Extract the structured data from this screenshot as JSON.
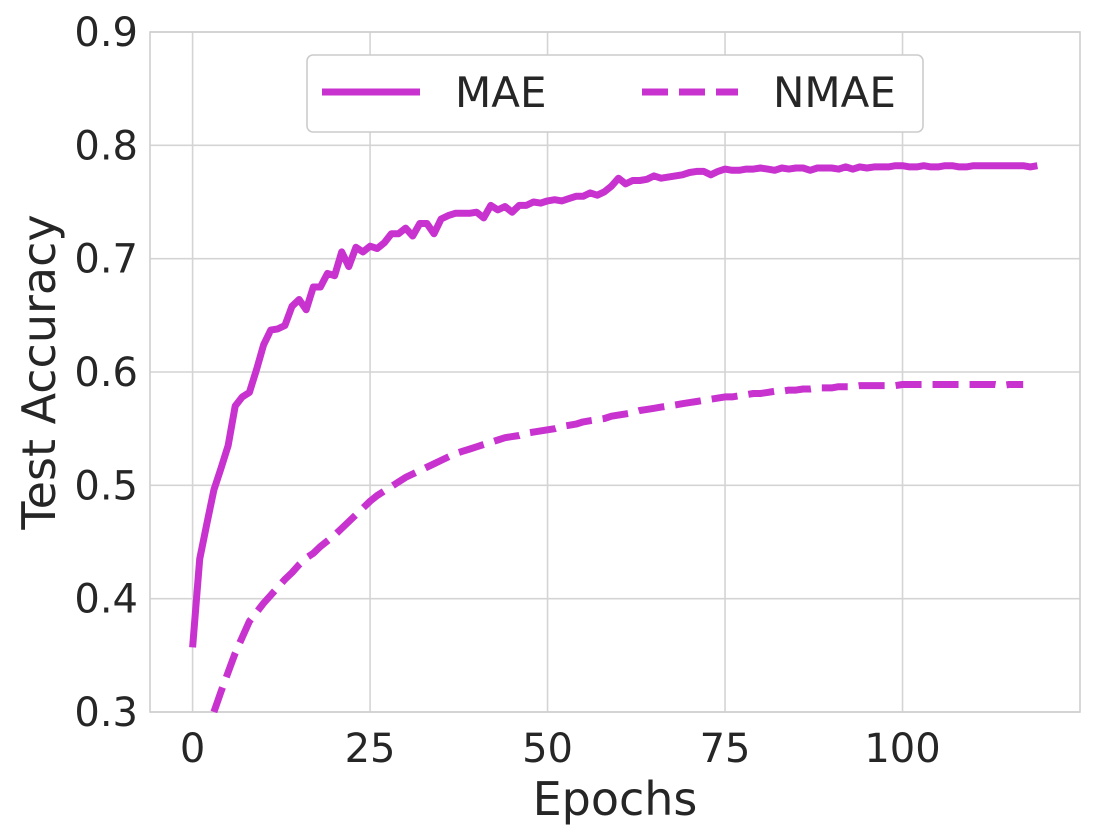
{
  "chart_data": {
    "type": "line",
    "title": "",
    "xlabel": "Epochs",
    "ylabel": "Test Accuracy",
    "xlim": [
      -6,
      125
    ],
    "ylim": [
      0.3,
      0.9
    ],
    "x_ticks": [
      0,
      25,
      50,
      75,
      100
    ],
    "x_tick_labels": [
      "0",
      "25",
      "50",
      "75",
      "100"
    ],
    "y_ticks": [
      0.3,
      0.4,
      0.5,
      0.6,
      0.7,
      0.8,
      0.9
    ],
    "y_tick_labels": [
      "0.3",
      "0.4",
      "0.5",
      "0.6",
      "0.7",
      "0.8",
      "0.9"
    ],
    "grid": true,
    "legend": {
      "placement": "top-center",
      "columns": 2
    },
    "series": [
      {
        "name": "MAE",
        "color": "#c832cf",
        "dash": "solid",
        "x": [
          0,
          1,
          2,
          3,
          4,
          5,
          6,
          7,
          8,
          9,
          10,
          11,
          12,
          13,
          14,
          15,
          16,
          17,
          18,
          19,
          20,
          21,
          22,
          23,
          24,
          25,
          26,
          27,
          28,
          29,
          30,
          31,
          32,
          33,
          34,
          35,
          36,
          37,
          38,
          39,
          40,
          41,
          42,
          43,
          44,
          45,
          46,
          47,
          48,
          49,
          50,
          51,
          52,
          53,
          54,
          55,
          56,
          57,
          58,
          59,
          60,
          61,
          62,
          63,
          64,
          65,
          66,
          67,
          68,
          69,
          70,
          71,
          72,
          73,
          74,
          75,
          76,
          77,
          78,
          79,
          80,
          81,
          82,
          83,
          84,
          85,
          86,
          87,
          88,
          89,
          90,
          91,
          92,
          93,
          94,
          95,
          96,
          97,
          98,
          99,
          100,
          101,
          102,
          103,
          104,
          105,
          106,
          107,
          108,
          109,
          110,
          111,
          112,
          113,
          114,
          115,
          116,
          117,
          118,
          119
        ],
        "y": [
          0.357,
          0.435,
          0.466,
          0.496,
          0.515,
          0.535,
          0.57,
          0.578,
          0.582,
          0.602,
          0.624,
          0.637,
          0.638,
          0.641,
          0.658,
          0.664,
          0.655,
          0.675,
          0.675,
          0.687,
          0.685,
          0.706,
          0.693,
          0.71,
          0.706,
          0.711,
          0.709,
          0.714,
          0.722,
          0.722,
          0.727,
          0.72,
          0.731,
          0.731,
          0.722,
          0.735,
          0.738,
          0.74,
          0.74,
          0.74,
          0.741,
          0.736,
          0.747,
          0.743,
          0.746,
          0.741,
          0.747,
          0.747,
          0.75,
          0.749,
          0.751,
          0.752,
          0.751,
          0.753,
          0.755,
          0.755,
          0.758,
          0.756,
          0.759,
          0.764,
          0.771,
          0.766,
          0.769,
          0.769,
          0.77,
          0.773,
          0.771,
          0.772,
          0.773,
          0.774,
          0.776,
          0.777,
          0.777,
          0.774,
          0.777,
          0.779,
          0.778,
          0.778,
          0.779,
          0.779,
          0.78,
          0.779,
          0.778,
          0.78,
          0.779,
          0.78,
          0.78,
          0.778,
          0.78,
          0.78,
          0.78,
          0.779,
          0.781,
          0.779,
          0.781,
          0.78,
          0.781,
          0.781,
          0.781,
          0.782,
          0.782,
          0.781,
          0.781,
          0.782,
          0.781,
          0.781,
          0.782,
          0.782,
          0.781,
          0.781,
          0.782,
          0.782,
          0.782,
          0.782,
          0.782,
          0.782,
          0.782,
          0.782,
          0.781,
          0.782
        ]
      },
      {
        "name": "NMAE",
        "color": "#c832cf",
        "dash": "dashed",
        "x": [
          3,
          4,
          5,
          6,
          7,
          8,
          9,
          10,
          11,
          12,
          13,
          14,
          15,
          16,
          17,
          18,
          19,
          20,
          21,
          22,
          23,
          24,
          25,
          26,
          27,
          28,
          29,
          30,
          31,
          32,
          33,
          34,
          35,
          36,
          37,
          38,
          39,
          40,
          41,
          42,
          43,
          44,
          45,
          46,
          47,
          48,
          49,
          50,
          51,
          52,
          53,
          54,
          55,
          56,
          57,
          58,
          59,
          60,
          61,
          62,
          63,
          64,
          65,
          66,
          67,
          68,
          69,
          70,
          71,
          72,
          73,
          74,
          75,
          76,
          77,
          78,
          79,
          80,
          81,
          82,
          83,
          84,
          85,
          86,
          87,
          88,
          89,
          90,
          91,
          92,
          93,
          94,
          95,
          96,
          97,
          98,
          99,
          100,
          101,
          102,
          103,
          104,
          105,
          106,
          107,
          108,
          109,
          110,
          111,
          112,
          113,
          114,
          115,
          116,
          117
        ],
        "y": [
          0.3,
          0.318,
          0.335,
          0.352,
          0.366,
          0.38,
          0.388,
          0.396,
          0.403,
          0.41,
          0.417,
          0.423,
          0.43,
          0.436,
          0.44,
          0.446,
          0.451,
          0.456,
          0.462,
          0.468,
          0.474,
          0.48,
          0.486,
          0.491,
          0.495,
          0.499,
          0.503,
          0.507,
          0.51,
          0.513,
          0.516,
          0.519,
          0.522,
          0.525,
          0.528,
          0.53,
          0.532,
          0.534,
          0.536,
          0.538,
          0.54,
          0.542,
          0.543,
          0.544,
          0.546,
          0.547,
          0.548,
          0.549,
          0.55,
          0.552,
          0.553,
          0.554,
          0.556,
          0.557,
          0.558,
          0.559,
          0.561,
          0.562,
          0.563,
          0.564,
          0.566,
          0.567,
          0.568,
          0.569,
          0.57,
          0.571,
          0.572,
          0.573,
          0.574,
          0.575,
          0.576,
          0.577,
          0.578,
          0.578,
          0.579,
          0.58,
          0.581,
          0.581,
          0.582,
          0.583,
          0.583,
          0.584,
          0.584,
          0.585,
          0.585,
          0.586,
          0.586,
          0.586,
          0.587,
          0.587,
          0.587,
          0.588,
          0.588,
          0.588,
          0.588,
          0.588,
          0.588,
          0.589,
          0.589,
          0.589,
          0.589,
          0.589,
          0.589,
          0.589,
          0.589,
          0.589,
          0.589,
          0.589,
          0.589,
          0.589,
          0.589,
          0.588,
          0.589,
          0.589,
          0.589
        ]
      }
    ]
  }
}
